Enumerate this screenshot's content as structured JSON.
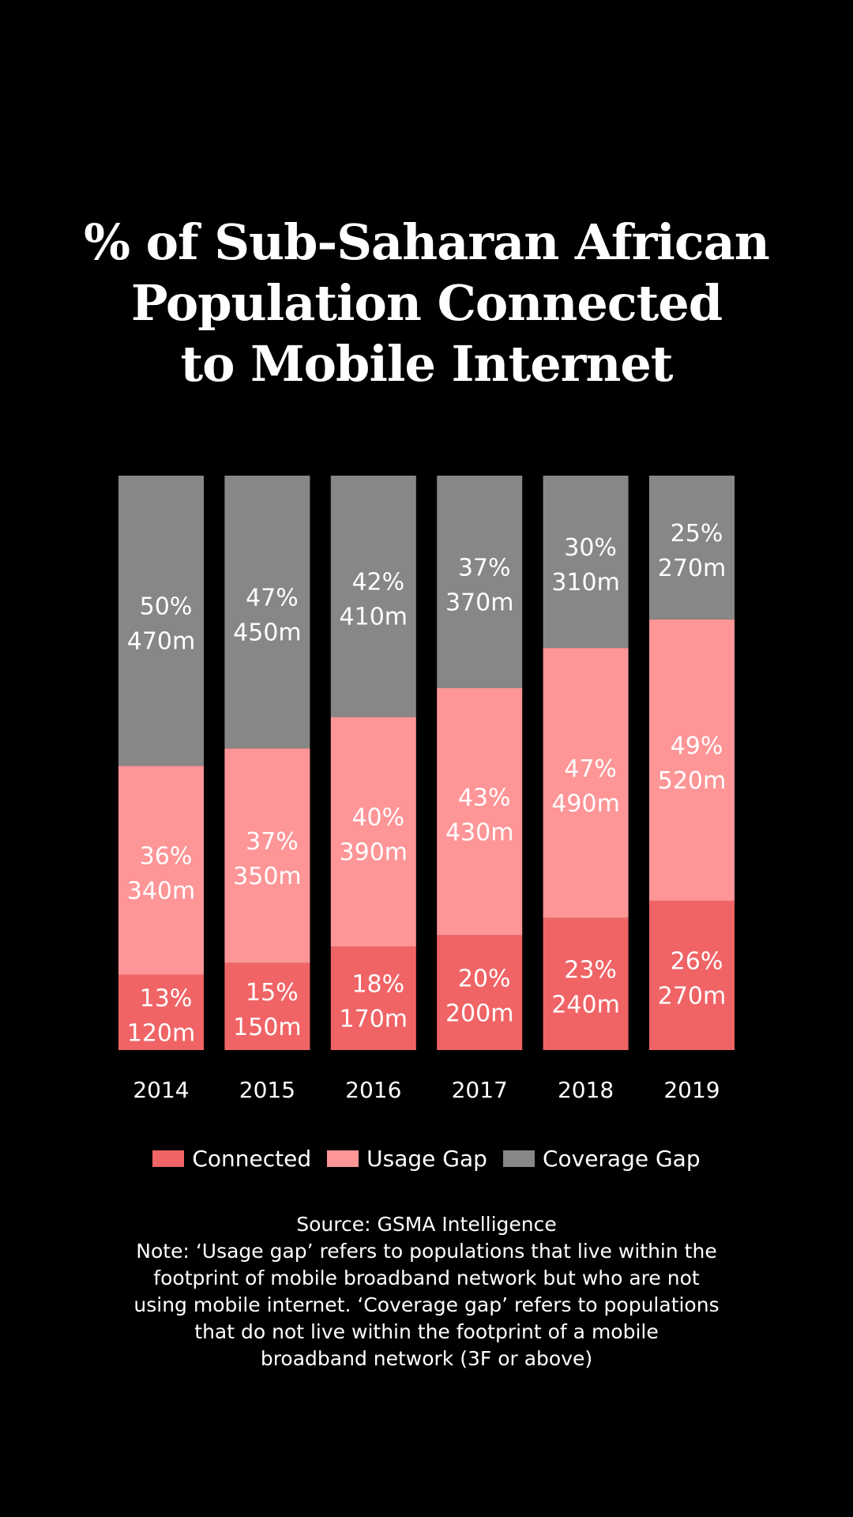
{
  "title_lines": [
    "% of Sub-Saharan African",
    "Population Connected",
    "to Mobile Internet"
  ],
  "colors": {
    "Connected": "#f06466",
    "Usage Gap": "#fe9597",
    "Coverage Gap": "#878787"
  },
  "legend": [
    "Connected",
    "Usage Gap",
    "Coverage Gap"
  ],
  "source": "Source: GSMA Intelligence",
  "note_lines": [
    "Note: ‘Usage gap’ refers to populations that live within the",
    "footprint of mobile broadband network but who are not",
    "using mobile internet. ‘Coverage gap’ refers to populations",
    "that do not live within the footprint of a mobile",
    "broadband network (3F or above)"
  ],
  "chart_data": {
    "type": "bar",
    "stacked": true,
    "title": "% of Sub-Saharan African Population Connected to Mobile Internet",
    "categories": [
      "2014",
      "2015",
      "2016",
      "2017",
      "2018",
      "2019"
    ],
    "series": [
      {
        "name": "Connected",
        "values": [
          13,
          15,
          18,
          20,
          23,
          26
        ],
        "labels": [
          "120m",
          "150m",
          "170m",
          "200m",
          "240m",
          "270m"
        ]
      },
      {
        "name": "Usage Gap",
        "values": [
          36,
          37,
          40,
          43,
          47,
          49
        ],
        "labels": [
          "340m",
          "350m",
          "390m",
          "430m",
          "490m",
          "520m"
        ]
      },
      {
        "name": "Coverage Gap",
        "values": [
          50,
          47,
          42,
          37,
          30,
          25
        ],
        "labels": [
          "470m",
          "450m",
          "410m",
          "370m",
          "310m",
          "270m"
        ]
      }
    ],
    "unit": "%",
    "xlabel": "",
    "ylabel": "",
    "legend_position": "bottom",
    "grid": false
  }
}
